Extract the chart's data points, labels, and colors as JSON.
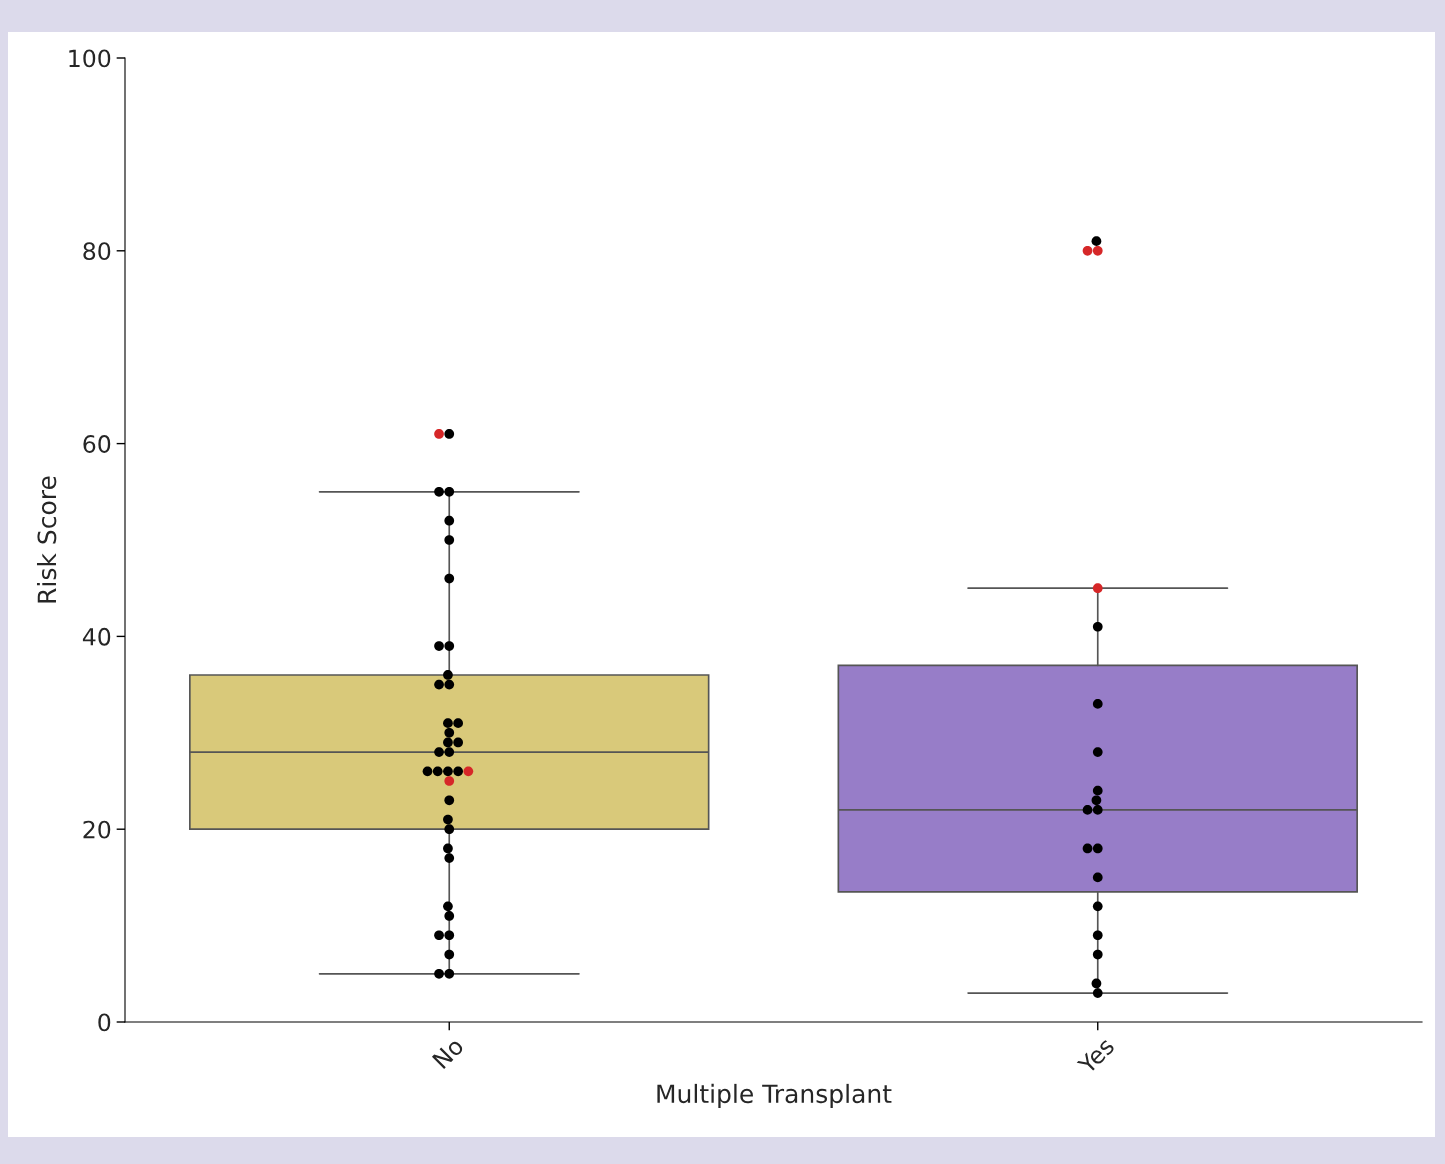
{
  "chart_data": {
    "type": "box",
    "xlabel": "Multiple Transplant",
    "ylabel": "Risk Score",
    "categories": [
      "No",
      "Yes"
    ],
    "colors": [
      "#d9c97a",
      "#977dc8"
    ],
    "boxes": [
      {
        "low": 5,
        "q1": 20,
        "median": 28,
        "q3": 36,
        "high": 55
      },
      {
        "low": 3,
        "q1": 13.5,
        "median": 22,
        "q3": 37,
        "high": 45
      }
    ],
    "series": [
      {
        "type": "scatter",
        "color": "#000000",
        "x": [
          "No",
          "No",
          "No",
          "No",
          "No",
          "No",
          "No",
          "No",
          "No",
          "No",
          "No",
          "No",
          "No",
          "No",
          "No",
          "No",
          "No",
          "No",
          "No",
          "No",
          "No",
          "No",
          "No",
          "No",
          "No",
          "No",
          "No",
          "No",
          "No",
          "No",
          "No",
          "No",
          "No",
          "No",
          "Yes",
          "Yes",
          "Yes",
          "Yes",
          "Yes",
          "Yes",
          "Yes",
          "Yes",
          "Yes",
          "Yes",
          "Yes",
          "Yes",
          "Yes",
          "Yes",
          "Yes",
          "Yes"
        ],
        "values": [
          61,
          55,
          55,
          52,
          50,
          46,
          39,
          39,
          36,
          35,
          35,
          31,
          31,
          30,
          29,
          29,
          28,
          28,
          26,
          26,
          26,
          26,
          23,
          21,
          20,
          18,
          17,
          12,
          11,
          9,
          9,
          7,
          5,
          5,
          81,
          41,
          33,
          28,
          24,
          23,
          22,
          22,
          18,
          18,
          15,
          12,
          9,
          7,
          4,
          3
        ]
      },
      {
        "type": "scatter",
        "color": "#d62728",
        "x": [
          "No",
          "No",
          "No",
          "Yes",
          "Yes",
          "Yes"
        ],
        "values": [
          61,
          26,
          25,
          80,
          80,
          45
        ]
      }
    ],
    "ylim": [
      0,
      100
    ],
    "yticks": [
      0,
      20,
      40,
      60,
      80,
      100
    ],
    "grid": false
  }
}
